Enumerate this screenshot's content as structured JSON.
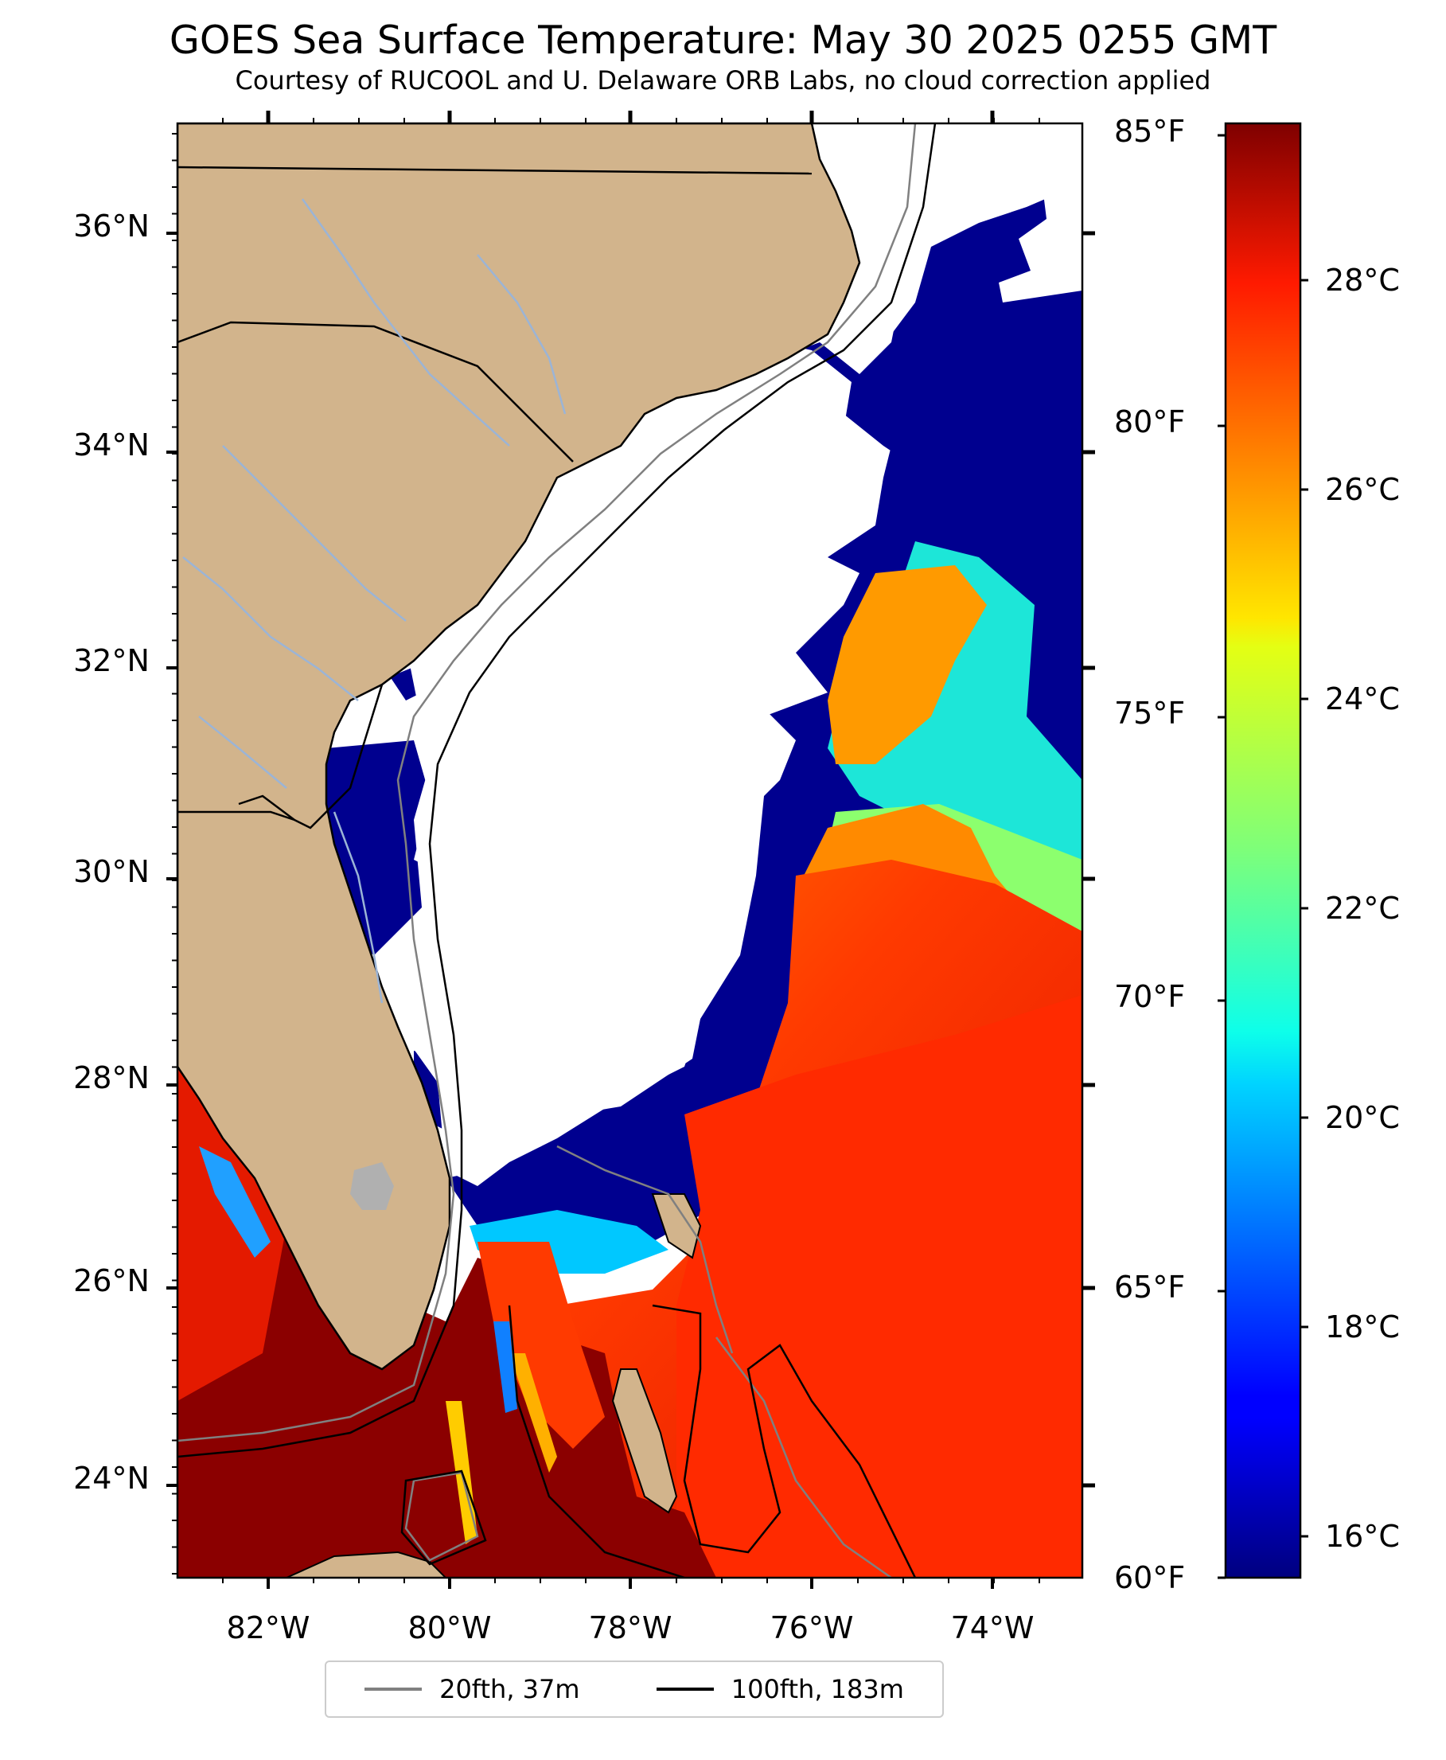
{
  "title": "GOES Sea Surface Temperature: May 30 2025 0255 GMT",
  "subtitle": "Courtesy of RUCOOL and U. Delaware ORB Labs, no cloud correction applied",
  "map": {
    "lon_range": [
      -83,
      -73
    ],
    "lat_range": [
      23,
      37
    ],
    "lat_ticks": [
      "36°N",
      "34°N",
      "32°N",
      "30°N",
      "28°N",
      "26°N",
      "24°N"
    ],
    "lon_ticks": [
      "82°W",
      "80°W",
      "78°W",
      "76°W",
      "74°W"
    ],
    "land_color": "#d2b48c",
    "cloud_color": "#ffffff",
    "river_color": "#9bb4d6"
  },
  "colorbar": {
    "colormap": "jet",
    "range_f": [
      60,
      85
    ],
    "fahrenheit_ticks": [
      "85°F",
      "80°F",
      "75°F",
      "70°F",
      "65°F",
      "60°F"
    ],
    "celsius_ticks": [
      "28°C",
      "26°C",
      "24°C",
      "22°C",
      "20°C",
      "18°C",
      "16°C"
    ]
  },
  "legend": {
    "items": [
      {
        "label": "20fth, 37m",
        "color": "#808080"
      },
      {
        "label": "100fth, 183m",
        "color": "#000000"
      }
    ]
  }
}
